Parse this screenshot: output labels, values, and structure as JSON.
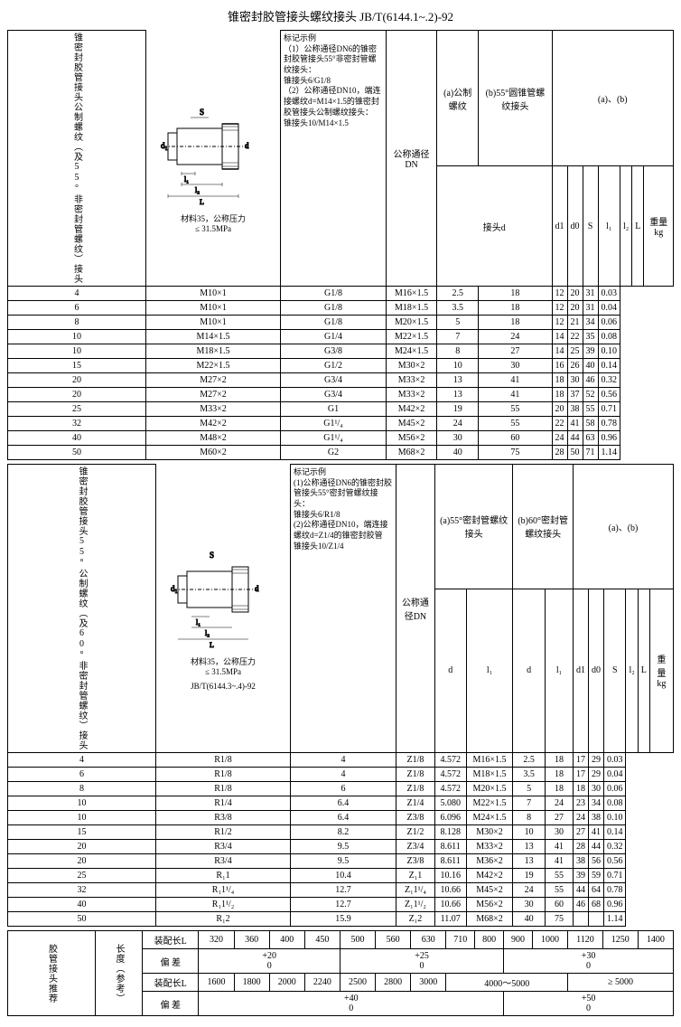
{
  "title": "锥密封胶管接头螺纹接头 JB/T(6144.1~.2)-92",
  "section1": {
    "vtitle": "锥密封胶管接头公制螺纹（及55°非密封管螺纹）接头",
    "material": "材料35，公称压力",
    "pressure": "≤ 31.5MPa",
    "desc": "标记示例\n（1）公称通径DN6的锥密封胶管接头55°非密封管螺纹接头：\n锥接头6/G1/8\n（2）公称通径DN10，端连接螺纹d=M14×1.5的锥密封胶管接头公制螺纹接头：\n锥接头10/M14×1.5",
    "headers": {
      "h1": "公称通径DN",
      "h2a": "(a)公制螺纹",
      "h2b": "(b)55°圆锥管螺纹接头",
      "h3": "(a)、(b)",
      "h4": "接头d",
      "d1": "d1",
      "d0": "d0",
      "S": "S",
      "l1": "l₁",
      "l2": "l₂",
      "L": "L",
      "w": "重量 kg"
    },
    "rows": [
      [
        "4",
        "M10×1",
        "G1/8",
        "M16×1.5",
        "2.5",
        "18",
        "12",
        "20",
        "31",
        "0.03"
      ],
      [
        "6",
        "M10×1",
        "G1/8",
        "M18×1.5",
        "3.5",
        "18",
        "12",
        "20",
        "31",
        "0.04"
      ],
      [
        "8",
        "M10×1",
        "G1/8",
        "M20×1.5",
        "5",
        "18",
        "12",
        "21",
        "34",
        "0.06"
      ],
      [
        "10",
        "M14×1.5",
        "G1/4",
        "M22×1.5",
        "7",
        "24",
        "14",
        "22",
        "35",
        "0.08"
      ],
      [
        "10",
        "M18×1.5",
        "G3/8",
        "M24×1.5",
        "8",
        "27",
        "14",
        "25",
        "39",
        "0.10"
      ],
      [
        "15",
        "M22×1.5",
        "G1/2",
        "M30×2",
        "10",
        "30",
        "16",
        "26",
        "40",
        "0.14"
      ],
      [
        "20",
        "M27×2",
        "G3/4",
        "M33×2",
        "13",
        "41",
        "18",
        "30",
        "46",
        "0.32"
      ],
      [
        "20",
        "M27×2",
        "G3/4",
        "M33×2",
        "13",
        "41",
        "18",
        "37",
        "52",
        "0.56"
      ],
      [
        "25",
        "M33×2",
        "G1",
        "M42×2",
        "19",
        "55",
        "20",
        "38",
        "55",
        "0.71"
      ],
      [
        "32",
        "M42×2",
        "G1¹/₄",
        "M45×2",
        "24",
        "55",
        "22",
        "41",
        "58",
        "0.78"
      ],
      [
        "40",
        "M48×2",
        "G1¹/₄",
        "M56×2",
        "30",
        "60",
        "24",
        "44",
        "63",
        "0.96"
      ],
      [
        "50",
        "M60×2",
        "G2",
        "M68×2",
        "40",
        "75",
        "28",
        "50",
        "71",
        "1.14"
      ]
    ]
  },
  "section2": {
    "vtitle": "锥密封胶管接头55°公制螺纹（及60°非密封管螺纹）接头",
    "material": "材料35，公称压力",
    "pressure": "≤ 31.5MPa",
    "standard": "JB/T(6144.3~.4)-92",
    "desc": "标记示例\n(1)公称通径DN6的锥密封胶管接头55°密封管螺纹接头：\n锥接头6/R1/8\n(2)公称通径DN10，端连接螺纹d=Z1/4的锥密封胶管\n锥接头10/Z1/4",
    "headers": {
      "h1": "公称通径DN",
      "h2a": "(a)55°密封管螺纹接头",
      "h2b": "(b)60°密封管螺纹接头",
      "h3": "(a)、(b)",
      "d": "d",
      "l1": "l₁",
      "d2": "d",
      "l1b": "l₁",
      "d1": "d1",
      "d0": "d0",
      "S": "S",
      "l2": "l₂",
      "L": "L",
      "w": "重量kg"
    },
    "rows": [
      [
        "4",
        "R1/8",
        "4",
        "Z1/8",
        "4.572",
        "M16×1.5",
        "2.5",
        "18",
        "17",
        "29",
        "0.03"
      ],
      [
        "6",
        "R1/8",
        "4",
        "Z1/8",
        "4.572",
        "M18×1.5",
        "3.5",
        "18",
        "17",
        "29",
        "0.04"
      ],
      [
        "8",
        "R1/8",
        "6",
        "Z1/8",
        "4.572",
        "M20×1.5",
        "5",
        "18",
        "18",
        "30",
        "0.06"
      ],
      [
        "10",
        "R1/4",
        "6.4",
        "Z1/4",
        "5.080",
        "M22×1.5",
        "7",
        "24",
        "23",
        "34",
        "0.08"
      ],
      [
        "10",
        "R3/8",
        "6.4",
        "Z3/8",
        "6.096",
        "M24×1.5",
        "8",
        "27",
        "24",
        "38",
        "0.10"
      ],
      [
        "15",
        "R1/2",
        "8.2",
        "Z1/2",
        "8.128",
        "M30×2",
        "10",
        "30",
        "27",
        "41",
        "0.14"
      ],
      [
        "20",
        "R3/4",
        "9.5",
        "Z3/4",
        "8.611",
        "M33×2",
        "13",
        "41",
        "28",
        "44",
        "0.32"
      ],
      [
        "20",
        "R3/4",
        "9.5",
        "Z3/8",
        "8.611",
        "M36×2",
        "13",
        "41",
        "38",
        "56",
        "0.56"
      ],
      [
        "25",
        "R₁1",
        "10.4",
        "Z₁1",
        "10.16",
        "M42×2",
        "19",
        "55",
        "39",
        "59",
        "0.71"
      ],
      [
        "32",
        "R₁1¹/₄",
        "12.7",
        "Z₁1¹/₄",
        "10.66",
        "M45×2",
        "24",
        "55",
        "44",
        "64",
        "0.78"
      ],
      [
        "40",
        "R₁1¹/₂",
        "12.7",
        "Z₁1¹/₂",
        "10.66",
        "M56×2",
        "30",
        "60",
        "46",
        "68",
        "0.96"
      ],
      [
        "50",
        "R₁2",
        "15.9",
        "Z₁2",
        "11.07",
        "M68×2",
        "40",
        "75",
        "",
        "",
        "1.14"
      ]
    ]
  },
  "section3": {
    "vtitle": "胶管接头推荐",
    "label": "长度（参考）",
    "row1label": "装配长L",
    "row1": [
      "320",
      "360",
      "400",
      "450",
      "500",
      "560",
      "630",
      "710",
      "800",
      "900",
      "1000",
      "1120",
      "1250",
      "1400"
    ],
    "row2label": "偏 差",
    "row2a": "+20\n0",
    "row2b": "+25\n0",
    "row2c": "+30\n0",
    "row3label": "装配长L",
    "row3": [
      "1600",
      "1800",
      "2000",
      "2240",
      "2500",
      "2800",
      "3000"
    ],
    "row3b": "4000～5000",
    "row3c": "≥ 5000",
    "row4label": "偏 差",
    "row4a": "+40\n0",
    "row4b": "+50\n0"
  }
}
